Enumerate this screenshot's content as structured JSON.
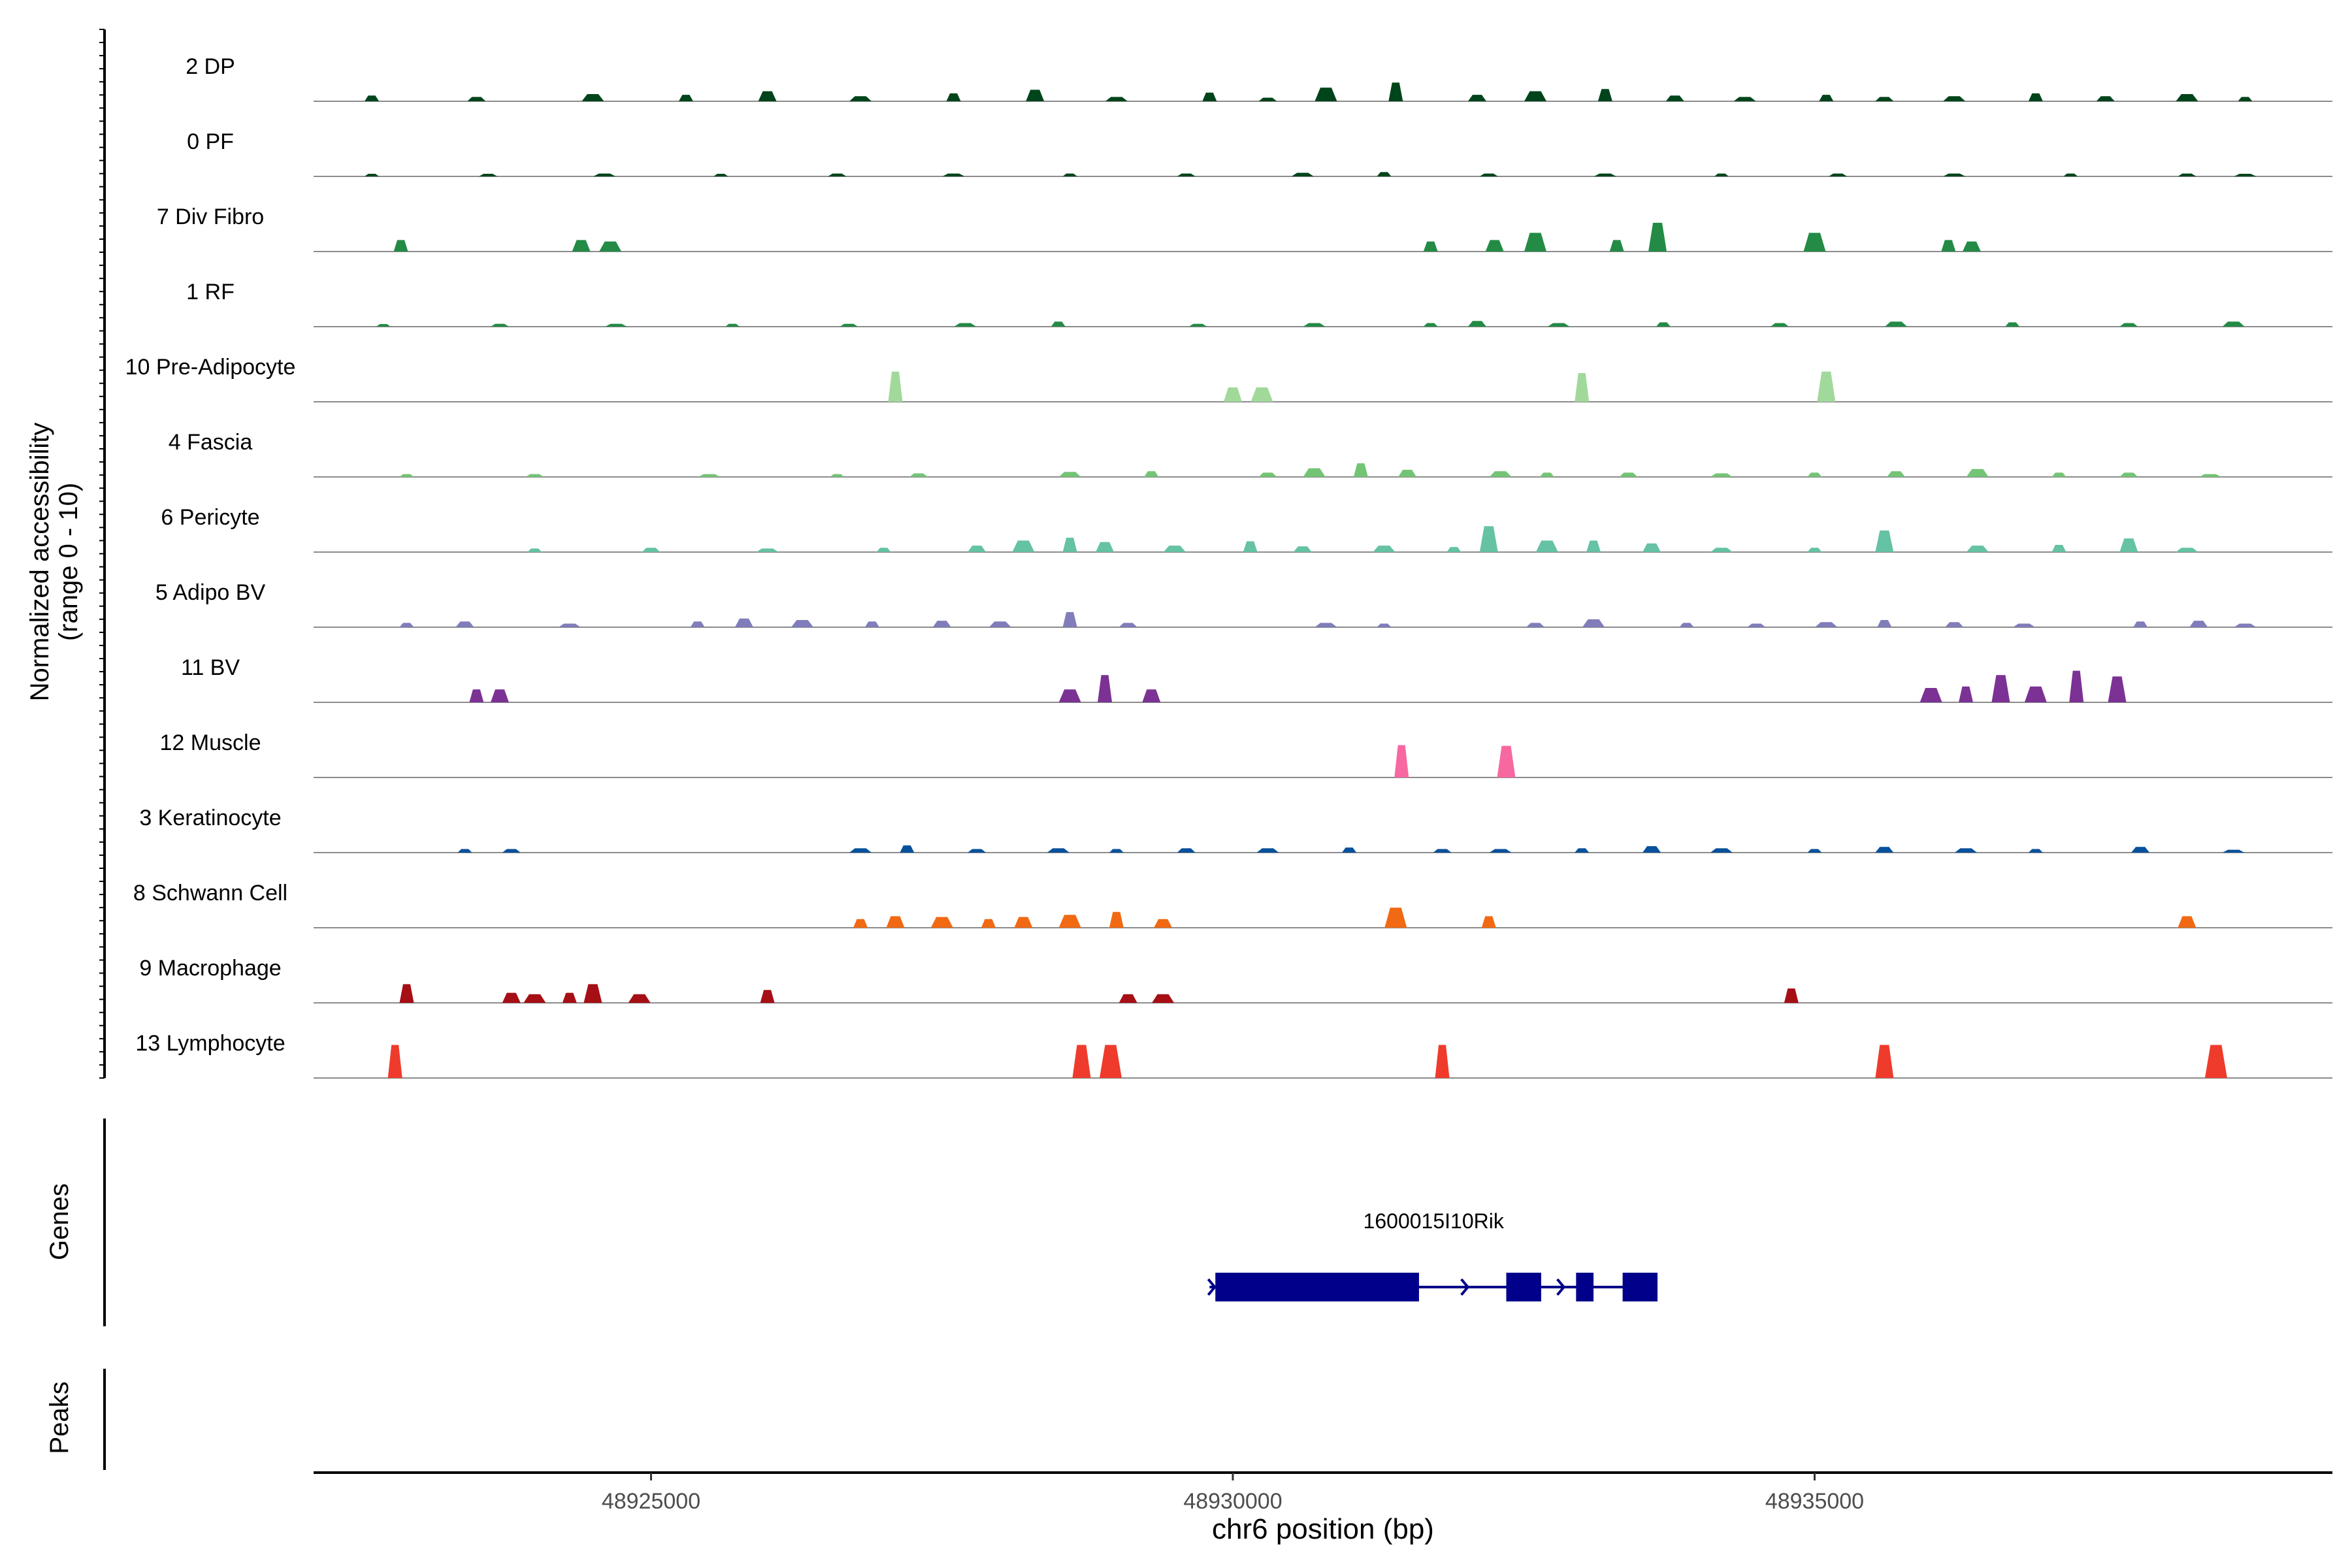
{
  "chart_data": {
    "type": "area",
    "xlabel": "chr6 position (bp)",
    "xlim": [
      48922100,
      48939450
    ],
    "xticks": [
      48925000,
      48930000,
      48935000
    ],
    "xtick_labels": [
      "48925000",
      "48930000",
      "48935000"
    ],
    "ylabel_line1": "Normalized accessibility",
    "ylabel_line2": "(range 0 - 10)",
    "ylim": [
      0,
      10
    ],
    "genes_label": "Genes",
    "peaks_label": "Peaks",
    "grid": false,
    "series": [
      {
        "name": "2 DP",
        "color": "#00441b",
        "x": [
          48922600,
          48923500,
          48924500,
          48925300,
          48926000,
          48926800,
          48927600,
          48928300,
          48929000,
          48929800,
          48930300,
          48930800,
          48931400,
          48932100,
          48932600,
          48933200,
          48933800,
          48934400,
          48935100,
          48935600,
          48936200,
          48936900,
          48937500,
          48938200,
          48938700
        ],
        "values": [
          0.8,
          0.6,
          1.0,
          0.9,
          1.4,
          0.7,
          1.1,
          1.6,
          0.6,
          1.2,
          0.5,
          1.9,
          2.6,
          0.9,
          1.4,
          1.7,
          0.8,
          0.6,
          0.9,
          0.6,
          0.7,
          1.1,
          0.7,
          1.0,
          0.6
        ]
      },
      {
        "name": "0 PF",
        "color": "#00441b",
        "x": [
          48922600,
          48923600,
          48924600,
          48925600,
          48926600,
          48927600,
          48928600,
          48929600,
          48930600,
          48931300,
          48932200,
          48933200,
          48934200,
          48935200,
          48936200,
          48937200,
          48938200,
          48938700
        ],
        "values": [
          0.3,
          0.3,
          0.4,
          0.3,
          0.4,
          0.4,
          0.4,
          0.4,
          0.5,
          0.6,
          0.4,
          0.4,
          0.4,
          0.4,
          0.4,
          0.4,
          0.4,
          0.3
        ]
      },
      {
        "name": "7 Div Fibro",
        "color": "#238b45",
        "x": [
          48922850,
          48924400,
          48924650,
          48931700,
          48932250,
          48932600,
          48933300,
          48933650,
          48935000,
          48936150,
          48936350
        ],
        "values": [
          1.6,
          1.6,
          1.4,
          1.4,
          1.6,
          2.6,
          1.6,
          4.0,
          2.6,
          1.6,
          1.4
        ]
      },
      {
        "name": "1 RF",
        "color": "#238b45",
        "x": [
          48922700,
          48923700,
          48924700,
          48925700,
          48926700,
          48927700,
          48928500,
          48929700,
          48930700,
          48931700,
          48932100,
          48932800,
          48933700,
          48934700,
          48935700,
          48936700,
          48937700,
          48938600
        ],
        "values": [
          0.3,
          0.4,
          0.4,
          0.4,
          0.4,
          0.5,
          0.7,
          0.4,
          0.5,
          0.5,
          0.8,
          0.5,
          0.6,
          0.5,
          0.7,
          0.6,
          0.5,
          0.7
        ]
      },
      {
        "name": "10 Pre-Adipocyte",
        "color": "#a1d99b",
        "x": [
          48927100,
          48930000,
          48930250,
          48933000,
          48935100
        ],
        "values": [
          4.2,
          2.0,
          2.0,
          4.0,
          4.2
        ]
      },
      {
        "name": "4 Fascia",
        "color": "#74c476",
        "x": [
          48922900,
          48924000,
          48925500,
          48926600,
          48927300,
          48928600,
          48929300,
          48930300,
          48930700,
          48931100,
          48931500,
          48932300,
          48932700,
          48933400,
          48934200,
          48935000,
          48935700,
          48936400,
          48937100,
          48937700,
          48938400
        ],
        "values": [
          0.4,
          0.4,
          0.4,
          0.4,
          0.5,
          0.7,
          0.8,
          0.6,
          1.2,
          1.9,
          1.0,
          0.8,
          0.6,
          0.6,
          0.5,
          0.6,
          0.8,
          1.1,
          0.6,
          0.6,
          0.4
        ]
      },
      {
        "name": "6 Pericyte",
        "color": "#66c2a4",
        "x": [
          48924000,
          48925000,
          48926000,
          48927000,
          48927800,
          48928200,
          48928600,
          48928900,
          48929500,
          48930150,
          48930600,
          48931300,
          48931900,
          48932200,
          48932700,
          48933100,
          48933600,
          48934200,
          48935000,
          48935600,
          48936400,
          48937100,
          48937700,
          48938200
        ],
        "values": [
          0.5,
          0.6,
          0.5,
          0.6,
          0.9,
          1.6,
          2.0,
          1.4,
          0.9,
          1.5,
          0.8,
          0.9,
          0.7,
          3.6,
          1.6,
          1.6,
          1.2,
          0.6,
          0.6,
          3.0,
          0.9,
          1.0,
          1.9,
          0.6
        ]
      },
      {
        "name": "5 Adipo BV",
        "color": "#807dba",
        "x": [
          48922900,
          48923400,
          48924300,
          48925400,
          48925800,
          48926300,
          48926900,
          48927500,
          48928000,
          48928600,
          48929100,
          48930800,
          48931300,
          48932600,
          48933100,
          48933900,
          48934500,
          48935100,
          48935600,
          48936200,
          48936800,
          48937800,
          48938300,
          48938700
        ],
        "values": [
          0.6,
          0.8,
          0.5,
          0.8,
          1.2,
          1.0,
          0.8,
          0.9,
          0.8,
          2.1,
          0.6,
          0.6,
          0.5,
          0.6,
          1.1,
          0.6,
          0.5,
          0.7,
          1.0,
          0.7,
          0.5,
          0.8,
          0.9,
          0.5
        ]
      },
      {
        "name": "11 BV",
        "color": "#7b3294",
        "x": [
          48923500,
          48923700,
          48928600,
          48928900,
          48929300,
          48936000,
          48936300,
          48936600,
          48936900,
          48937250,
          48937600
        ],
        "values": [
          1.8,
          1.8,
          1.8,
          3.8,
          1.8,
          2.0,
          2.2,
          3.8,
          2.2,
          4.4,
          3.6
        ]
      },
      {
        "name": "12 Muscle",
        "color": "#f768a1",
        "x": [
          48931450,
          48932350
        ],
        "values": [
          4.5,
          4.4
        ]
      },
      {
        "name": "3 Keratinocyte",
        "color": "#08519c",
        "x": [
          48923400,
          48923800,
          48926800,
          48927200,
          48927800,
          48928500,
          48929000,
          48929600,
          48930300,
          48931000,
          48931800,
          48932300,
          48933000,
          48933600,
          48934200,
          48935000,
          48935600,
          48936300,
          48936900,
          48937800,
          48938600
        ],
        "values": [
          0.5,
          0.5,
          0.6,
          1.0,
          0.5,
          0.6,
          0.5,
          0.6,
          0.6,
          0.7,
          0.5,
          0.5,
          0.6,
          0.9,
          0.6,
          0.5,
          0.8,
          0.6,
          0.5,
          0.8,
          0.4
        ]
      },
      {
        "name": "8 Schwann Cell",
        "color": "#f16913",
        "x": [
          48926800,
          48927100,
          48927500,
          48927900,
          48928200,
          48928600,
          48929000,
          48929400,
          48931400,
          48932200,
          48938200
        ],
        "values": [
          1.2,
          1.6,
          1.5,
          1.2,
          1.5,
          1.8,
          2.2,
          1.2,
          2.8,
          1.6,
          1.6
        ]
      },
      {
        "name": "9 Macrophage",
        "color": "#a50f15",
        "x": [
          48922900,
          48923800,
          48924000,
          48924300,
          48924500,
          48924900,
          48926000,
          48929100,
          48929400,
          48934800
        ],
        "values": [
          2.6,
          1.4,
          1.2,
          1.4,
          2.6,
          1.2,
          1.8,
          1.2,
          1.2,
          2.0
        ],
        "markers": []
      },
      {
        "name": "13 Lymphocyte",
        "color": "#ef3b2c",
        "x": [
          48922800,
          48928700,
          48928950,
          48931800,
          48935600,
          48938450
        ],
        "values": [
          4.6,
          4.6,
          4.6,
          4.6,
          4.6,
          4.6
        ]
      }
    ],
    "genes": [
      {
        "name": "1600015I10Rik",
        "strand": "+",
        "start": 48929800,
        "end": 48933650,
        "color": "#00008b",
        "exons": [
          [
            48929850,
            48931600
          ],
          [
            48932350,
            48932650
          ],
          [
            48932950,
            48933100
          ],
          [
            48933350,
            48933650
          ]
        ]
      }
    ]
  }
}
